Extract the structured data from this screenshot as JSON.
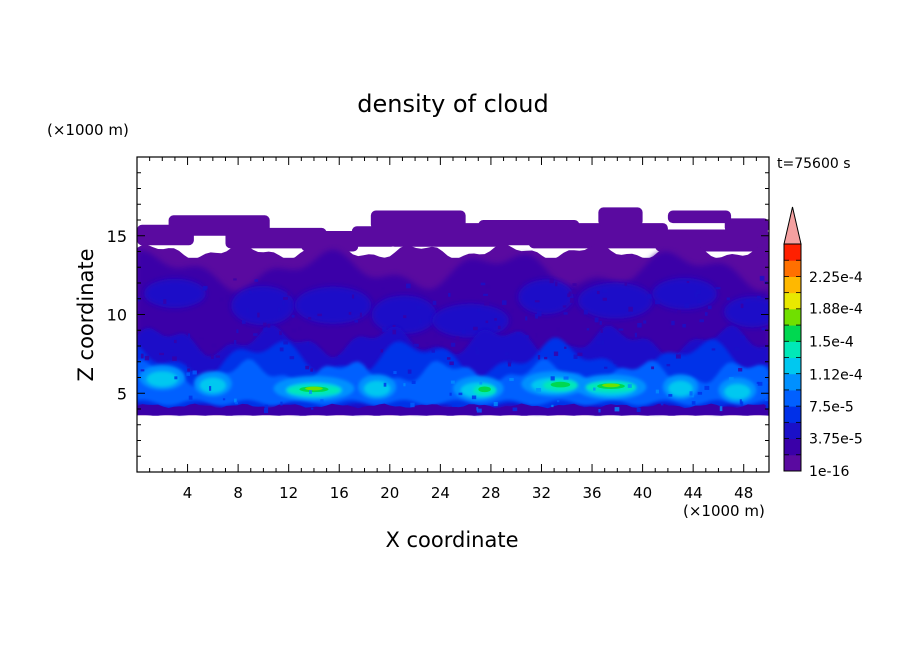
{
  "chart_data": {
    "type": "heatmap",
    "title": "density of cloud",
    "time_label": "t=75600 s",
    "xlabel": "X coordinate",
    "ylabel": "Z coordinate",
    "x_unit": "(×1000 m)",
    "y_unit": "(×1000 m)",
    "xlim": [
      0,
      50
    ],
    "ylim": [
      0,
      20
    ],
    "xticks": [
      4,
      8,
      12,
      16,
      20,
      24,
      28,
      32,
      36,
      40,
      44,
      48
    ],
    "yticks": [
      5,
      10,
      15
    ],
    "colorbar": {
      "labels": [
        "2.25e-4",
        "1.88e-4",
        "1.5e-4",
        "1.12e-4",
        "7.5e-5",
        "3.75e-5",
        "1e-16"
      ],
      "label_levels": [
        0.000225,
        0.000188,
        0.00015,
        0.000112,
        7.5e-05,
        3.75e-05,
        1e-16
      ],
      "colors": [
        "#5a0aa0",
        "#3a00a8",
        "#1a10c8",
        "#0030e8",
        "#0060ff",
        "#0090ff",
        "#00c8f0",
        "#00e8b8",
        "#00d850",
        "#70e000",
        "#e8e800",
        "#ffb800",
        "#ff7000",
        "#ff2000"
      ],
      "extend_color": "#f4a0a0"
    },
    "cloud_layers": [
      {
        "name": "",
        "z_range": [
          3.5,
          14
        ],
        "density": "low"
      },
      {
        "name": "",
        "z_range": [
          3.5,
          8
        ],
        "density": "medium"
      },
      {
        "name": "",
        "z_range": [
          4.5,
          6
        ],
        "density": "high",
        "peak_x": [
          13,
          37
        ]
      },
      {
        "name": "",
        "z_range": [
          14,
          17
        ],
        "density": "very-low",
        "patchy": true
      }
    ]
  }
}
